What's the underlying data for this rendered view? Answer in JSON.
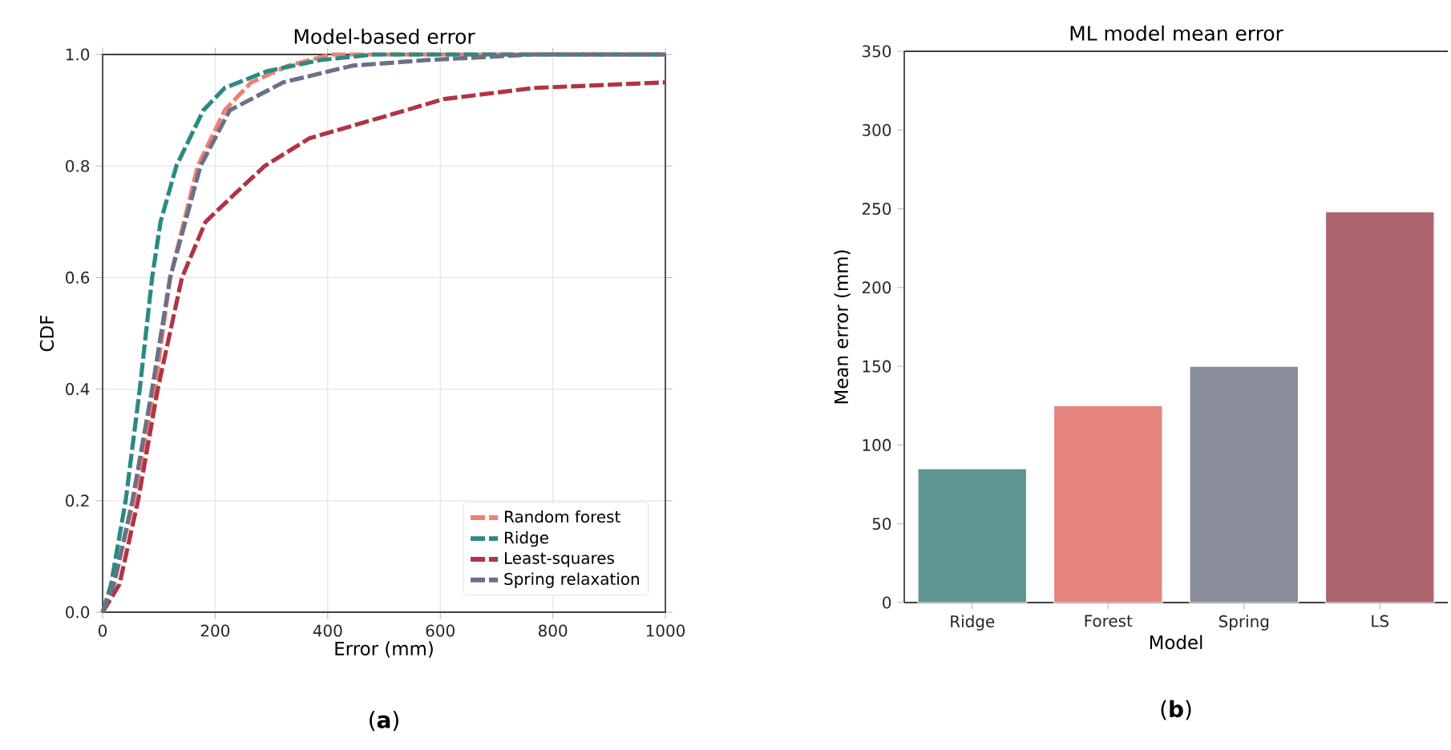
{
  "chart_data": [
    {
      "type": "line",
      "title": "Model-based error",
      "xlabel": "Error (mm)",
      "ylabel": "CDF",
      "xlim": [
        0,
        1000
      ],
      "ylim": [
        0,
        1.0
      ],
      "xticks": [
        0,
        200,
        400,
        600,
        800,
        1000
      ],
      "yticks": [
        {
          "value": 0,
          "label": "0.0"
        },
        0.2,
        0.4,
        0.6,
        0.8,
        {
          "value": 1,
          "label": "1.0"
        }
      ],
      "grid": true,
      "legend": "bottom right",
      "line_style": "dashed",
      "annotations": [
        "(**a**)"
      ],
      "series": [
        {
          "name": "Random forest",
          "color": "#f08070",
          "x": [
            0,
            20,
            55,
            93,
            120,
            169,
            217,
            264,
            330,
            406,
            1000
          ],
          "values": [
            0,
            0.05,
            0.2,
            0.4,
            0.6,
            0.8,
            0.9,
            0.95,
            0.98,
            1.0,
            1.0
          ]
        },
        {
          "name": "Ridge",
          "color": "#2a8a82",
          "x": [
            0,
            15,
            41,
            66,
            88,
            103,
            131,
            179,
            217,
            292,
            387,
            482,
            1000
          ],
          "values": [
            0,
            0.05,
            0.2,
            0.4,
            0.6,
            0.7,
            0.8,
            0.9,
            0.94,
            0.97,
            0.99,
            1.0,
            1.0
          ]
        },
        {
          "name": "Least-squares",
          "color": "#b03444",
          "x": [
            0,
            30,
            41,
            63,
            98,
            141,
            183,
            235,
            288,
            368,
            539,
            606,
            767,
            1000
          ],
          "values": [
            0,
            0.05,
            0.1,
            0.2,
            0.4,
            0.6,
            0.7,
            0.75,
            0.8,
            0.85,
            0.9,
            0.92,
            0.94,
            0.95
          ]
        },
        {
          "name": "Spring relaxation",
          "color": "#6b6f88",
          "x": [
            0,
            20,
            53,
            88,
            120,
            174,
            226,
            321,
            444,
            577,
            767,
            1000
          ],
          "values": [
            0,
            0.05,
            0.2,
            0.4,
            0.6,
            0.8,
            0.9,
            0.95,
            0.98,
            0.99,
            1.0,
            1.0
          ]
        }
      ]
    },
    {
      "type": "bar",
      "title": "ML model mean error",
      "xlabel": "Model",
      "ylabel": "Mean error (mm)",
      "categories": [
        "Ridge",
        "Forest",
        "Spring",
        "LS"
      ],
      "values": [
        85,
        125,
        150,
        248
      ],
      "colors": [
        "#5e9694",
        "#e5847e",
        "#8a8d9b",
        "#ad6570"
      ],
      "ylim": [
        0,
        350
      ],
      "yticks": [
        0,
        50,
        100,
        150,
        200,
        250,
        300,
        350
      ],
      "annotations": [
        "(**b**)"
      ]
    }
  ]
}
